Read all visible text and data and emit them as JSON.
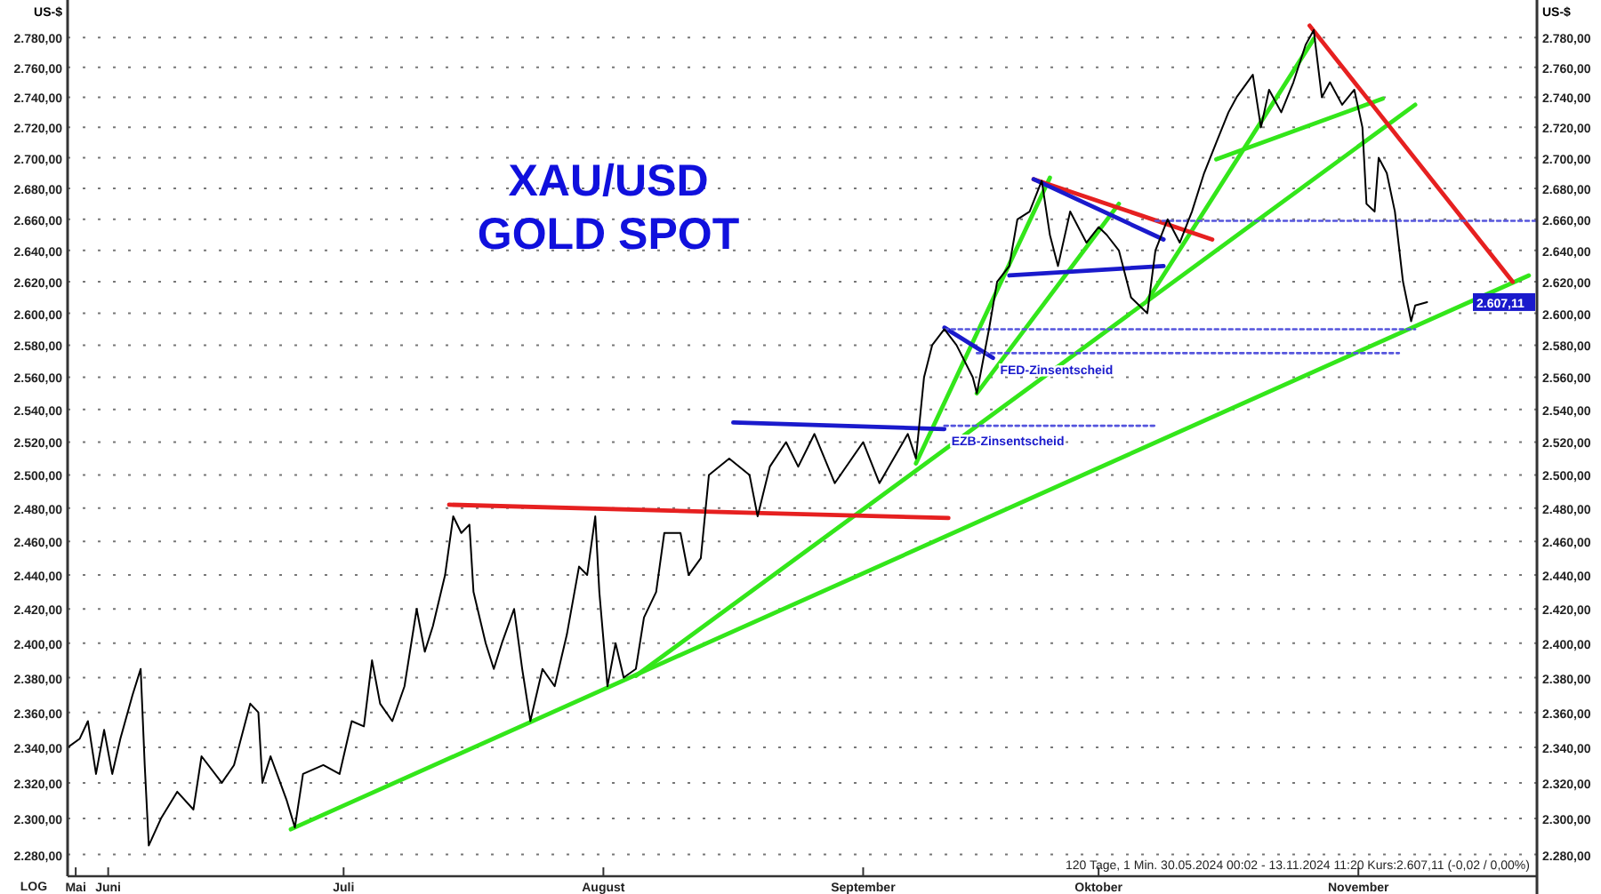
{
  "chart_data": {
    "type": "line",
    "title": "XAU/USD",
    "subtitle": "GOLD SPOT",
    "ylabel": "US-$",
    "y2label": "US-$",
    "log": true,
    "grid": "y",
    "xlim": [
      "2024-05-30T00:00",
      "2024-11-27T00:00"
    ],
    "xticks": [
      {
        "value": "2024-05-31T00:00",
        "label": "Mai"
      },
      {
        "value": "2024-06-04T00:00",
        "label": "Juni"
      },
      {
        "value": "2024-07-03T00:00",
        "label": "Juli"
      },
      {
        "value": "2024-08-04T00:00",
        "label": "August"
      },
      {
        "value": "2024-09-05T00:00",
        "label": "September"
      },
      {
        "value": "2024-10-04T00:00",
        "label": "Oktober"
      },
      {
        "value": "2024-11-05T00:00",
        "label": "November"
      }
    ],
    "ylim": [
      2268,
      2803
    ],
    "yticks": [
      {
        "value": 2280,
        "label": "2.280,00"
      },
      {
        "value": 2300,
        "label": "2.300,00"
      },
      {
        "value": 2320,
        "label": "2.320,00"
      },
      {
        "value": 2340,
        "label": "2.340,00"
      },
      {
        "value": 2360,
        "label": "2.360,00"
      },
      {
        "value": 2380,
        "label": "2.380,00"
      },
      {
        "value": 2400,
        "label": "2.400,00"
      },
      {
        "value": 2420,
        "label": "2.420,00"
      },
      {
        "value": 2440,
        "label": "2.440,00"
      },
      {
        "value": 2460,
        "label": "2.460,00"
      },
      {
        "value": 2480,
        "label": "2.480,00"
      },
      {
        "value": 2500,
        "label": "2.500,00"
      },
      {
        "value": 2520,
        "label": "2.520,00"
      },
      {
        "value": 2540,
        "label": "2.540,00"
      },
      {
        "value": 2560,
        "label": "2.560,00"
      },
      {
        "value": 2580,
        "label": "2.580,00"
      },
      {
        "value": 2600,
        "label": "2.600,00"
      },
      {
        "value": 2620,
        "label": "2.620,00"
      },
      {
        "value": 2640,
        "label": "2.640,00"
      },
      {
        "value": 2660,
        "label": "2.660,00"
      },
      {
        "value": 2680,
        "label": "2.680,00"
      },
      {
        "value": 2700,
        "label": "2.700,00"
      },
      {
        "value": 2720,
        "label": "2.720,00"
      },
      {
        "value": 2740,
        "label": "2.740,00"
      },
      {
        "value": 2760,
        "label": "2.760,00"
      },
      {
        "value": 2780,
        "label": "2.780,00"
      }
    ],
    "x": [
      "2024-05-30T00:00",
      "2024-05-31T12:00",
      "2024-06-01T12:00",
      "2024-06-02T12:00",
      "2024-06-03T12:00",
      "2024-06-04T12:00",
      "2024-06-05T12:00",
      "2024-06-07T00:00",
      "2024-06-08T00:00",
      "2024-06-08T12:00",
      "2024-06-09T00:00",
      "2024-06-10T12:00",
      "2024-06-12T12:00",
      "2024-06-14T12:00",
      "2024-06-15T12:00",
      "2024-06-18T00:00",
      "2024-06-19T12:00",
      "2024-06-21T12:00",
      "2024-06-22T12:00",
      "2024-06-23T00:00",
      "2024-06-24T00:00",
      "2024-06-26T00:00",
      "2024-06-27T00:00",
      "2024-06-28T00:00",
      "2024-06-30T12:00",
      "2024-07-02T12:00",
      "2024-07-04T00:00",
      "2024-07-05T12:00",
      "2024-07-06T12:00",
      "2024-07-07T12:00",
      "2024-07-09T00:00",
      "2024-07-10T12:00",
      "2024-07-12T00:00",
      "2024-07-13T00:00",
      "2024-07-14T00:00",
      "2024-07-15T12:00",
      "2024-07-16T12:00",
      "2024-07-17T12:00",
      "2024-07-18T12:00",
      "2024-07-19T00:00",
      "2024-07-20T12:00",
      "2024-07-21T12:00",
      "2024-07-22T12:00",
      "2024-07-24T00:00",
      "2024-07-25T00:00",
      "2024-07-26T00:00",
      "2024-07-27T12:00",
      "2024-07-29T00:00",
      "2024-07-30T12:00",
      "2024-08-01T00:00",
      "2024-08-02T00:00",
      "2024-08-03T00:00",
      "2024-08-03T12:00",
      "2024-08-04T12:00",
      "2024-08-05T12:00",
      "2024-08-06T12:00",
      "2024-08-08T00:00",
      "2024-08-09T00:00",
      "2024-08-10T12:00",
      "2024-08-11T12:00",
      "2024-08-13T12:00",
      "2024-08-14T12:00",
      "2024-08-16T00:00",
      "2024-08-17T00:00",
      "2024-08-19T12:00",
      "2024-08-22T00:00",
      "2024-08-23T00:00",
      "2024-08-24T12:00",
      "2024-08-26T12:00",
      "2024-08-28T00:00",
      "2024-08-30T00:00",
      "2024-09-01T12:00",
      "2024-09-05T00:00",
      "2024-09-07T00:00",
      "2024-09-10T12:00",
      "2024-09-11T12:00",
      "2024-09-12T12:00",
      "2024-09-13T12:00",
      "2024-09-15T00:00",
      "2024-09-16T12:00",
      "2024-09-18T12:00",
      "2024-09-19T00:00",
      "2024-09-20T12:00",
      "2024-09-21T12:00",
      "2024-09-23T00:00",
      "2024-09-24T00:00",
      "2024-09-25T12:00",
      "2024-09-27T00:00",
      "2024-09-28T00:00",
      "2024-09-29T00:00",
      "2024-09-30T12:00",
      "2024-10-02T12:00",
      "2024-10-04T00:00",
      "2024-10-05T00:00",
      "2024-10-06T12:00",
      "2024-10-08T00:00",
      "2024-10-10T00:00",
      "2024-10-11T00:00",
      "2024-10-12T12:00",
      "2024-10-14T00:00",
      "2024-10-15T12:00",
      "2024-10-17T00:00",
      "2024-10-18T12:00",
      "2024-10-20T00:00",
      "2024-10-21T00:00",
      "2024-10-23T00:00",
      "2024-10-24T00:00",
      "2024-10-25T00:00",
      "2024-10-26T12:00",
      "2024-10-28T00:00",
      "2024-10-29T12:00",
      "2024-10-30T12:00",
      "2024-10-31T12:00",
      "2024-11-01T12:00",
      "2024-11-03T00:00",
      "2024-11-04T12:00",
      "2024-11-05T12:00",
      "2024-11-06T00:00",
      "2024-11-07T00:00",
      "2024-11-07T12:00",
      "2024-11-08T12:00",
      "2024-11-09T12:00",
      "2024-11-10T12:00",
      "2024-11-11T12:00",
      "2024-11-12T00:00",
      "2024-11-13T11:20"
    ],
    "series": [
      {
        "color": "#000000",
        "values": [
          2340,
          2345,
          2355,
          2325,
          2350,
          2325,
          2345,
          2370,
          2385,
          2330,
          2285,
          2300,
          2315,
          2305,
          2335,
          2320,
          2330,
          2365,
          2360,
          2320,
          2335,
          2310,
          2295,
          2325,
          2330,
          2325,
          2355,
          2352,
          2390,
          2365,
          2355,
          2375,
          2420,
          2395,
          2410,
          2440,
          2475,
          2465,
          2470,
          2430,
          2400,
          2385,
          2400,
          2420,
          2385,
          2355,
          2385,
          2375,
          2405,
          2445,
          2440,
          2475,
          2430,
          2375,
          2400,
          2380,
          2385,
          2415,
          2430,
          2465,
          2465,
          2440,
          2450,
          2500,
          2510,
          2500,
          2475,
          2505,
          2520,
          2505,
          2525,
          2495,
          2520,
          2495,
          2525,
          2510,
          2560,
          2580,
          2590,
          2580,
          2560,
          2550,
          2590,
          2620,
          2630,
          2660,
          2665,
          2685,
          2650,
          2630,
          2665,
          2645,
          2655,
          2650,
          2640,
          2610,
          2600,
          2640,
          2660,
          2645,
          2665,
          2690,
          2710,
          2730,
          2740,
          2755,
          2720,
          2745,
          2730,
          2750,
          2775,
          2785,
          2740,
          2750,
          2735,
          2745,
          2720,
          2670,
          2665,
          2700,
          2690,
          2665,
          2620,
          2595,
          2605,
          2607.11
        ]
      },
      {
        "color": "#33e61a",
        "x": [
          "2024-06-26T12:00",
          "2024-11-26T00:00"
        ],
        "values": [
          2294,
          2624
        ]
      },
      {
        "color": "#33e61a",
        "x": [
          "2024-08-08T00:00",
          "2024-11-12T00:00"
        ],
        "values": [
          2381,
          2735
        ]
      },
      {
        "color": "#33e61a",
        "x": [
          "2024-09-11T12:00",
          "2024-09-28T00:00"
        ],
        "values": [
          2507,
          2687
        ]
      },
      {
        "color": "#33e61a",
        "x": [
          "2024-09-19T00:00",
          "2024-10-06T12:00"
        ],
        "values": [
          2550,
          2670
        ]
      },
      {
        "color": "#33e61a",
        "x": [
          "2024-10-10T00:00",
          "2024-10-30T12:00"
        ],
        "values": [
          2608,
          2779
        ]
      },
      {
        "color": "#33e61a",
        "x": [
          "2024-10-18T12:00",
          "2024-11-08T00:00"
        ],
        "values": [
          2699,
          2739
        ]
      },
      {
        "color": "#e62020",
        "x": [
          "2024-07-16T00:00",
          "2024-09-15T12:00"
        ],
        "values": [
          2482,
          2474
        ]
      },
      {
        "color": "#e62020",
        "x": [
          "2024-09-26T00:00",
          "2024-10-18T00:00"
        ],
        "values": [
          2686,
          2647
        ]
      },
      {
        "color": "#e62020",
        "x": [
          "2024-10-30T00:00",
          "2024-11-24T00:00"
        ],
        "values": [
          2788,
          2620
        ]
      },
      {
        "color": "#1a1acc",
        "x": [
          "2024-08-20T00:00",
          "2024-09-15T00:00"
        ],
        "values": [
          2532,
          2528
        ]
      },
      {
        "color": "#1a1acc",
        "x": [
          "2024-09-15T00:00",
          "2024-09-21T00:00"
        ],
        "values": [
          2591,
          2572
        ]
      },
      {
        "color": "#1a1acc",
        "x": [
          "2024-09-23T00:00",
          "2024-10-12T00:00"
        ],
        "values": [
          2624,
          2630
        ]
      },
      {
        "color": "#1a1acc",
        "x": [
          "2024-09-26T00:00",
          "2024-10-12T00:00"
        ],
        "values": [
          2686,
          2647
        ]
      },
      {
        "color": "#5555dd",
        "line_style": "dotted",
        "x": [
          "2024-10-11T00:00",
          "2024-11-27T00:00"
        ],
        "values": [
          2659,
          2659
        ]
      },
      {
        "color": "#5555dd",
        "line_style": "dotted",
        "x": [
          "2024-09-15T00:00",
          "2024-11-12T00:00"
        ],
        "values": [
          2590,
          2590
        ]
      },
      {
        "color": "#5555dd",
        "line_style": "dotted",
        "x": [
          "2024-09-19T00:00",
          "2024-11-10T00:00"
        ],
        "values": [
          2575,
          2575
        ]
      },
      {
        "color": "#5555dd",
        "line_style": "dotted",
        "x": [
          "2024-09-15T00:00",
          "2024-10-11T00:00"
        ],
        "values": [
          2530,
          2530
        ]
      }
    ],
    "annotations": [
      "LOG",
      {
        "text": "FED-Zinsentscheid",
        "x": "2024-09-21T00:00",
        "y": 2572
      },
      {
        "text": "EZB-Zinsentscheid",
        "x": "2024-09-15T00:00",
        "y": 2528
      },
      "120 Tage, 1 Min. 30.05.2024 00:02 - 13.11.2024 11:20 Kurs:2.607,11 (-0,02 / 0,00%)",
      "2.607,11"
    ]
  }
}
